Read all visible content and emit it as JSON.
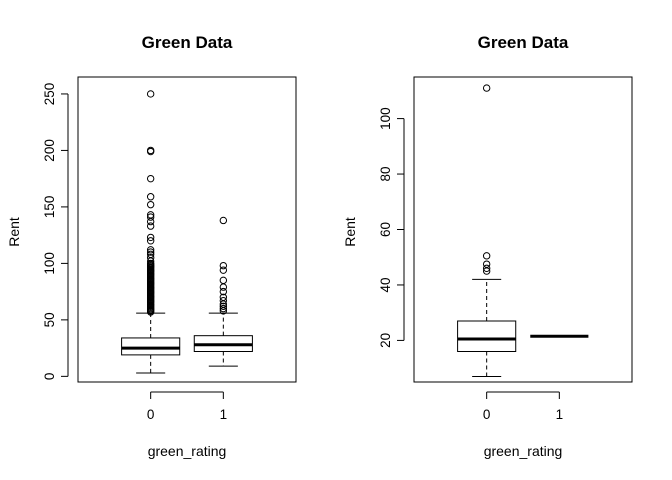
{
  "chart_data": [
    {
      "type": "box",
      "title": "Green Data",
      "xlabel": "green_rating",
      "ylabel": "Rent",
      "categories": [
        "0",
        "1"
      ],
      "ylim": [
        -5,
        265
      ],
      "yticks": [
        0,
        50,
        100,
        150,
        200,
        250
      ],
      "boxes": [
        {
          "category": "0",
          "min": 3,
          "q1": 19,
          "median": 25,
          "q3": 34,
          "max": 56,
          "outliers": [
            57,
            58,
            59,
            60,
            61,
            62,
            63,
            64,
            65,
            66,
            67,
            68,
            69,
            70,
            71,
            72,
            73,
            74,
            75,
            76,
            77,
            78,
            79,
            80,
            81,
            82,
            83,
            84,
            85,
            86,
            87,
            88,
            89,
            90,
            91,
            92,
            93,
            94,
            95,
            96,
            97,
            98,
            99,
            100,
            102,
            105,
            108,
            110,
            112,
            120,
            123,
            133,
            137,
            141,
            143,
            152,
            159,
            175,
            199,
            200,
            250
          ]
        },
        {
          "category": "1",
          "min": 9,
          "q1": 22,
          "median": 28,
          "q3": 36,
          "max": 56,
          "outliers": [
            58,
            60,
            62,
            64,
            67,
            70,
            75,
            79,
            85,
            94,
            98,
            138
          ]
        }
      ]
    },
    {
      "type": "box",
      "title": "Green Data",
      "xlabel": "green_rating",
      "ylabel": "Rent",
      "categories": [
        "0",
        "1"
      ],
      "ylim": [
        5,
        115
      ],
      "yticks": [
        20,
        40,
        60,
        80,
        100
      ],
      "boxes": [
        {
          "category": "0",
          "min": 7,
          "q1": 16,
          "median": 20.5,
          "q3": 27,
          "max": 42,
          "outliers": [
            45,
            46,
            47.5,
            50.5,
            111
          ]
        },
        {
          "category": "1",
          "min": 21.5,
          "q1": 21.5,
          "median": 21.5,
          "q3": 21.5,
          "max": 21.5,
          "outliers": []
        }
      ]
    }
  ]
}
